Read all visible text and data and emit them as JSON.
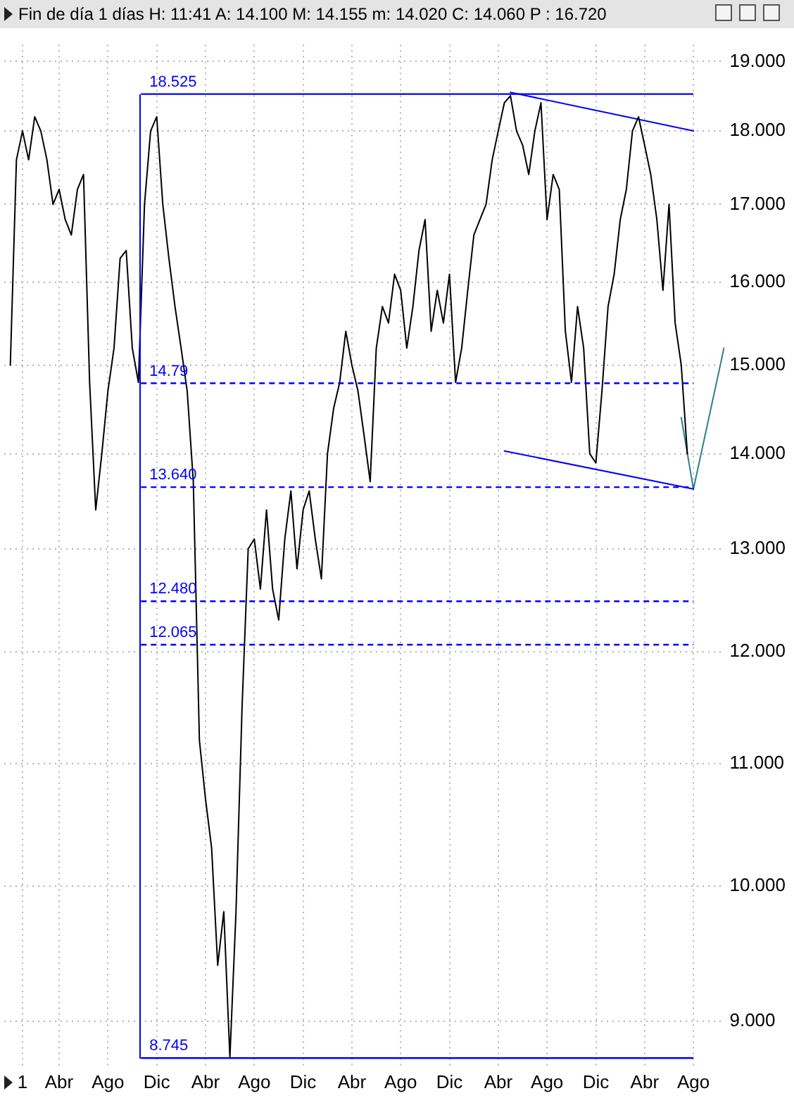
{
  "chart_data": {
    "type": "line",
    "title": "Fin de día 1 días  H: 11:41  A: 14.100  M: 14.155  m: 14.020  C: 14.060  P : 16.720",
    "log": "y",
    "grid": true,
    "legend": false,
    "marker": "none",
    "categories": [
      null,
      null,
      null,
      "1",
      null,
      null,
      null,
      null,
      null,
      "Abr",
      null,
      null,
      null,
      null,
      null,
      null,
      null,
      "Ago",
      null,
      null,
      null,
      null,
      null,
      null,
      null,
      "Dic",
      null,
      null,
      null,
      null,
      null,
      null,
      null,
      "Abr",
      null,
      null,
      null,
      null,
      null,
      null,
      null,
      "Ago",
      null,
      null,
      null,
      null,
      null,
      null,
      null,
      "Dic",
      null,
      null,
      null,
      null,
      null,
      null,
      null,
      "Abr",
      null,
      null,
      null,
      null,
      null,
      null,
      null,
      "Ago",
      null,
      null,
      null,
      null,
      null,
      null,
      null,
      "Dic",
      null,
      null,
      null,
      null,
      null,
      null,
      null,
      "Abr",
      null,
      null,
      null,
      null,
      null,
      null,
      null,
      "Ago",
      null,
      null,
      null,
      null,
      null,
      null,
      null,
      "Dic",
      null,
      null,
      null,
      null,
      null,
      null,
      null,
      "Abr",
      null,
      null,
      null,
      null,
      null,
      null,
      null,
      "Ago",
      null,
      null,
      null,
      null,
      null
    ],
    "ylim": [
      8.68,
      19.25
    ],
    "yticks": [
      {
        "value": 9,
        "label": "9.000"
      },
      {
        "value": 10,
        "label": "10.000"
      },
      {
        "value": 11,
        "label": "11.000"
      },
      {
        "value": 12,
        "label": "12.000"
      },
      {
        "value": 13,
        "label": "13.000"
      },
      {
        "value": 14,
        "label": "14.000"
      },
      {
        "value": 15,
        "label": "15.000"
      },
      {
        "value": 16,
        "label": "16.000"
      },
      {
        "value": 17,
        "label": "17.000"
      },
      {
        "value": 18,
        "label": "18.000"
      },
      {
        "value": 19,
        "label": "19.000"
      }
    ],
    "series": [
      {
        "color": "#000000",
        "values": [
          null,
          15.0,
          17.6,
          18.0,
          17.6,
          18.2,
          18.0,
          17.6,
          17.0,
          17.2,
          16.8,
          16.6,
          17.2,
          17.4,
          14.8,
          13.4,
          14.0,
          14.7,
          15.2,
          16.3,
          16.4,
          15.2,
          14.8,
          17.0,
          18.0,
          18.2,
          17.0,
          16.3,
          15.7,
          15.2,
          14.7,
          13.7,
          11.2,
          10.7,
          10.3,
          9.4,
          9.8,
          8.75,
          9.8,
          11.5,
          13.0,
          13.1,
          12.6,
          13.4,
          12.6,
          12.3,
          13.1,
          13.6,
          12.8,
          13.4,
          13.6,
          13.1,
          12.7,
          14.0,
          14.5,
          14.8,
          15.4,
          15.0,
          14.7,
          14.2,
          13.7,
          15.2,
          15.7,
          15.5,
          16.1,
          15.9,
          15.2,
          15.7,
          16.4,
          16.8,
          15.4,
          15.9,
          15.5,
          16.1,
          14.8,
          15.2,
          15.9,
          16.6,
          16.8,
          17.0,
          17.6,
          18.0,
          18.4,
          18.5,
          18.0,
          17.8,
          17.4,
          18.0,
          18.4,
          16.8,
          17.4,
          17.2,
          15.4,
          14.8,
          15.7,
          15.2,
          14.0,
          13.9,
          14.7,
          15.7,
          16.1,
          16.8,
          17.2,
          18.0,
          18.2,
          17.8,
          17.4,
          16.8,
          15.9,
          17.0,
          15.5,
          15.0,
          14.0,
          null,
          null,
          null,
          null,
          null,
          null
        ]
      },
      {
        "color": "#0000ff",
        "values": [
          null,
          null,
          null,
          null,
          null,
          null,
          null,
          null,
          null,
          null,
          null,
          null,
          null,
          null,
          null,
          null,
          null,
          null,
          null,
          null,
          null,
          null,
          null,
          null,
          null,
          null,
          null,
          null,
          null,
          null,
          null,
          null,
          null,
          null,
          null,
          null,
          null,
          null,
          null,
          null,
          null,
          null,
          null,
          null,
          null,
          null,
          null,
          null,
          null,
          null,
          null,
          null,
          null,
          null,
          null,
          null,
          null,
          null,
          null,
          null,
          null,
          null,
          null,
          null,
          null,
          null,
          null,
          null,
          null,
          null,
          null,
          null,
          null,
          null,
          null,
          null,
          null,
          null,
          null,
          null,
          null,
          null,
          null,
          18.55,
          null,
          null,
          null,
          null,
          null,
          null,
          null,
          null,
          null,
          null,
          null,
          null,
          null,
          null,
          null,
          null,
          null,
          null,
          null,
          null,
          null,
          null,
          null,
          null,
          null,
          null,
          null,
          null,
          null,
          18.0,
          null,
          null,
          null,
          null,
          null
        ]
      },
      {
        "color": "#0000ff",
        "values": [
          null,
          null,
          null,
          null,
          null,
          null,
          null,
          null,
          null,
          null,
          null,
          null,
          null,
          null,
          null,
          null,
          null,
          null,
          null,
          null,
          null,
          null,
          null,
          null,
          null,
          null,
          null,
          null,
          null,
          null,
          null,
          null,
          null,
          null,
          null,
          null,
          null,
          null,
          null,
          null,
          null,
          null,
          null,
          null,
          null,
          null,
          null,
          null,
          null,
          null,
          null,
          null,
          null,
          null,
          null,
          null,
          null,
          null,
          null,
          null,
          null,
          null,
          null,
          null,
          null,
          null,
          null,
          null,
          null,
          null,
          null,
          null,
          null,
          null,
          null,
          null,
          null,
          null,
          null,
          null,
          null,
          null,
          14.03,
          null,
          null,
          null,
          null,
          null,
          null,
          null,
          null,
          null,
          null,
          null,
          null,
          null,
          null,
          null,
          null,
          null,
          null,
          null,
          null,
          null,
          null,
          null,
          null,
          null,
          null,
          null,
          null,
          null,
          null,
          13.62,
          null,
          null,
          null,
          null,
          null
        ]
      },
      {
        "color": "#2f7f8f",
        "values": [
          null,
          null,
          null,
          null,
          null,
          null,
          null,
          null,
          null,
          null,
          null,
          null,
          null,
          null,
          null,
          null,
          null,
          null,
          null,
          null,
          null,
          null,
          null,
          null,
          null,
          null,
          null,
          null,
          null,
          null,
          null,
          null,
          null,
          null,
          null,
          null,
          null,
          null,
          null,
          null,
          null,
          null,
          null,
          null,
          null,
          null,
          null,
          null,
          null,
          null,
          null,
          null,
          null,
          null,
          null,
          null,
          null,
          null,
          null,
          null,
          null,
          null,
          null,
          null,
          null,
          null,
          null,
          null,
          null,
          null,
          null,
          null,
          null,
          null,
          null,
          null,
          null,
          null,
          null,
          null,
          null,
          null,
          null,
          null,
          null,
          null,
          null,
          null,
          null,
          null,
          null,
          null,
          null,
          null,
          null,
          null,
          null,
          null,
          null,
          null,
          null,
          null,
          null,
          null,
          null,
          null,
          null,
          null,
          null,
          null,
          null,
          14.4,
          null,
          13.62,
          null,
          null,
          null,
          null,
          15.2
        ]
      }
    ],
    "ref_lines": [
      {
        "axis": "y",
        "value": 18.525,
        "label": "18.525",
        "color": "#0000ff",
        "line_style": "solid"
      },
      {
        "axis": "y",
        "value": 14.79,
        "label": "14.79",
        "color": "#0000ff",
        "line_style": "dashed"
      },
      {
        "axis": "y",
        "value": 13.64,
        "label": "13.640",
        "color": "#0000ff",
        "line_style": "dashed"
      },
      {
        "axis": "y",
        "value": 12.48,
        "label": "12.480",
        "color": "#0000ff",
        "line_style": "dashed"
      },
      {
        "axis": "y",
        "value": 12.065,
        "label": "12.065",
        "color": "#0000ff",
        "line_style": "dashed"
      },
      {
        "axis": "y",
        "value": 8.745,
        "label": "8.745",
        "color": "#0000ff",
        "line_style": "solid"
      }
    ]
  }
}
